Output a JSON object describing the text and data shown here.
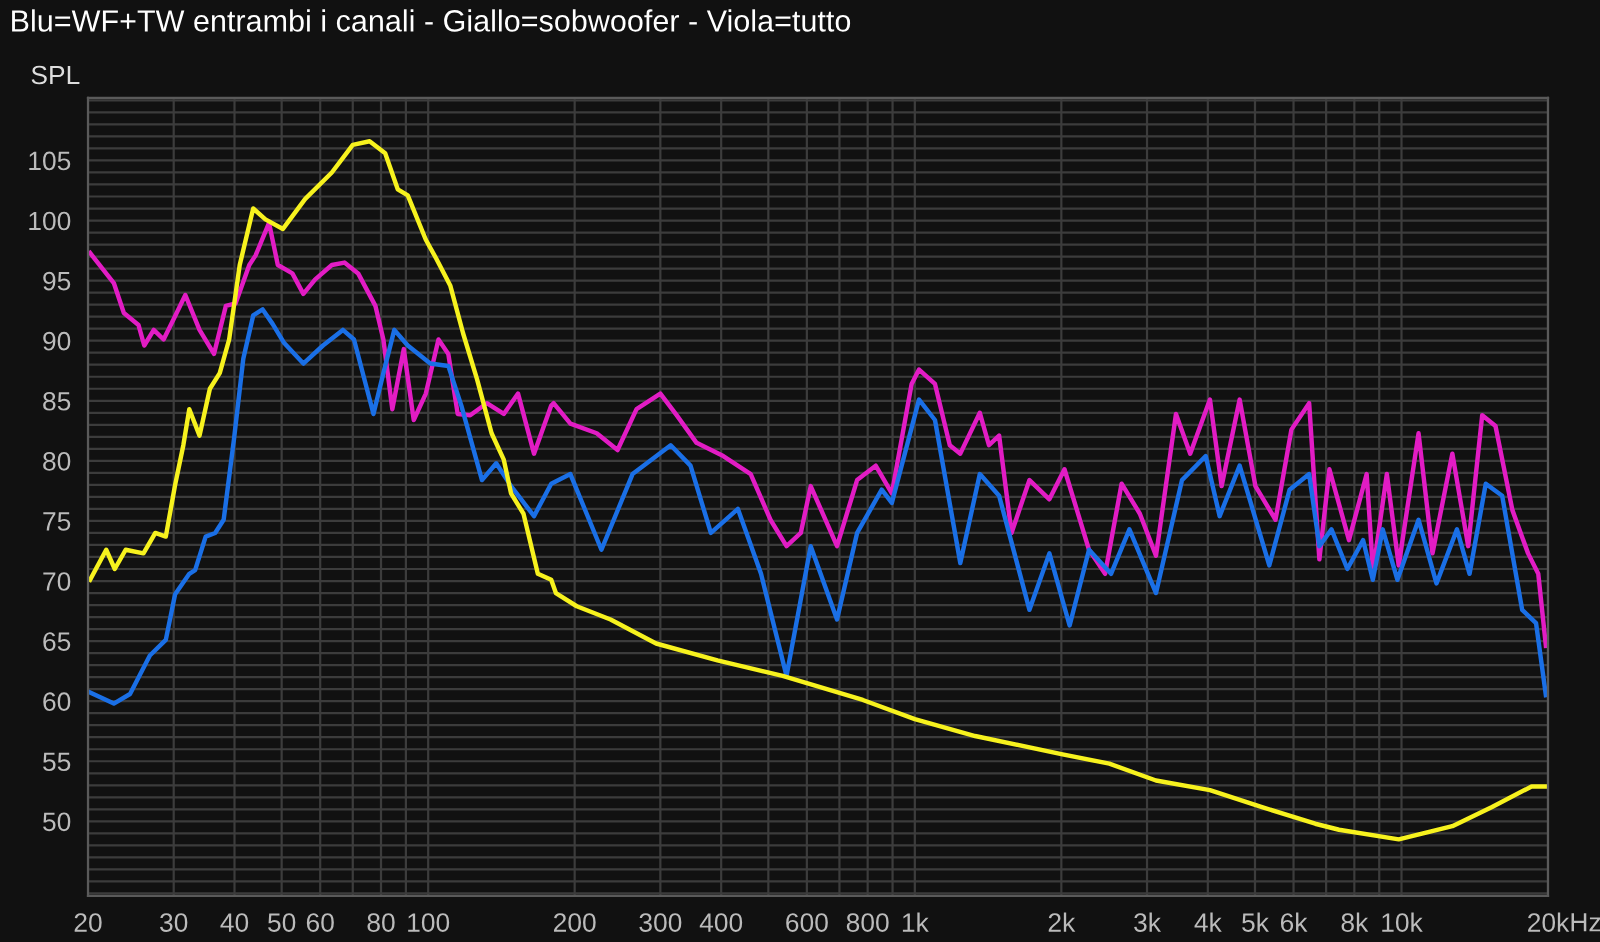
{
  "chart_data": {
    "type": "line",
    "title": "Blu=WF+TW entrambi i canali - Giallo=sobwoofer - Viola=tutto",
    "ylabel": "SPL",
    "xlabel": "Hz",
    "log": "x",
    "grid": true,
    "marker": "none",
    "line_style": "solid",
    "xlim": [
      20,
      20000
    ],
    "ylim": [
      43.8,
      110.2
    ],
    "xticks": [
      20,
      30,
      40,
      50,
      60,
      {
        "value": 70,
        "label": null
      },
      80,
      {
        "value": 90,
        "label": null
      },
      100,
      200,
      300,
      400,
      {
        "value": 500,
        "label": null
      },
      600,
      {
        "value": 700,
        "label": null
      },
      800,
      {
        "value": 900,
        "label": null
      },
      {
        "value": 1000,
        "label": "1k"
      },
      {
        "value": 2000,
        "label": "2k"
      },
      {
        "value": 3000,
        "label": "3k"
      },
      {
        "value": 4000,
        "label": "4k"
      },
      {
        "value": 5000,
        "label": "5k"
      },
      {
        "value": 6000,
        "label": "6k"
      },
      {
        "value": 7000,
        "label": null
      },
      {
        "value": 8000,
        "label": "8k"
      },
      {
        "value": 9000,
        "label": null
      },
      {
        "value": 10000,
        "label": "10k"
      },
      {
        "value": 20000,
        "label": "20k"
      }
    ],
    "yticks": [
      {
        "value": 44,
        "label": null
      },
      {
        "value": 45,
        "label": null
      },
      {
        "value": 46,
        "label": null
      },
      {
        "value": 47,
        "label": null
      },
      {
        "value": 48,
        "label": null
      },
      {
        "value": 49,
        "label": null
      },
      50,
      {
        "value": 51,
        "label": null
      },
      {
        "value": 52,
        "label": null
      },
      {
        "value": 53,
        "label": null
      },
      {
        "value": 54,
        "label": null
      },
      55,
      {
        "value": 56,
        "label": null
      },
      {
        "value": 57,
        "label": null
      },
      {
        "value": 58,
        "label": null
      },
      {
        "value": 59,
        "label": null
      },
      60,
      {
        "value": 61,
        "label": null
      },
      {
        "value": 62,
        "label": null
      },
      {
        "value": 63,
        "label": null
      },
      {
        "value": 64,
        "label": null
      },
      65,
      {
        "value": 66,
        "label": null
      },
      {
        "value": 67,
        "label": null
      },
      {
        "value": 68,
        "label": null
      },
      {
        "value": 69,
        "label": null
      },
      70,
      {
        "value": 71,
        "label": null
      },
      {
        "value": 72,
        "label": null
      },
      {
        "value": 73,
        "label": null
      },
      {
        "value": 74,
        "label": null
      },
      75,
      {
        "value": 76,
        "label": null
      },
      {
        "value": 77,
        "label": null
      },
      {
        "value": 78,
        "label": null
      },
      {
        "value": 79,
        "label": null
      },
      80,
      {
        "value": 81,
        "label": null
      },
      {
        "value": 82,
        "label": null
      },
      {
        "value": 83,
        "label": null
      },
      {
        "value": 84,
        "label": null
      },
      85,
      {
        "value": 86,
        "label": null
      },
      {
        "value": 87,
        "label": null
      },
      {
        "value": 88,
        "label": null
      },
      {
        "value": 89,
        "label": null
      },
      90,
      {
        "value": 91,
        "label": null
      },
      {
        "value": 92,
        "label": null
      },
      {
        "value": 93,
        "label": null
      },
      {
        "value": 94,
        "label": null
      },
      95,
      {
        "value": 96,
        "label": null
      },
      {
        "value": 97,
        "label": null
      },
      {
        "value": 98,
        "label": null
      },
      {
        "value": 99,
        "label": null
      },
      100,
      {
        "value": 101,
        "label": null
      },
      {
        "value": 102,
        "label": null
      },
      {
        "value": 103,
        "label": null
      },
      {
        "value": 104,
        "label": null
      },
      105,
      {
        "value": 106,
        "label": null
      },
      {
        "value": 107,
        "label": null
      },
      {
        "value": 108,
        "label": null
      },
      {
        "value": 109,
        "label": null
      },
      {
        "value": 110,
        "label": null
      }
    ],
    "series": [
      {
        "color": "#e21cc4",
        "x": [
          20.2,
          22.6,
          23.7,
          25.4,
          26.1,
          27.3,
          28.6,
          30.0,
          31.7,
          33.9,
          36.3,
          38.4,
          40.2,
          42.9,
          44.2,
          47.1,
          49.1,
          52.6,
          55.4,
          58.6,
          63.4,
          67.3,
          71.8,
          77.9,
          80.9,
          84.4,
          89.1,
          93.4,
          98.9,
          105,
          110,
          115,
          122,
          132,
          143,
          153,
          165,
          179,
          181,
          196,
          222,
          245,
          268,
          300,
          324,
          356,
          404,
          460,
          505,
          545,
          583,
          611,
          692,
          761,
          831,
          897,
          985,
          1020,
          1100,
          1180,
          1240,
          1360,
          1420,
          1490,
          1580,
          1720,
          1890,
          2030,
          2280,
          2460,
          2660,
          2900,
          3130,
          3440,
          3680,
          4040,
          4270,
          4650,
          5010,
          5510,
          5940,
          6460,
          6780,
          7110,
          7800,
          8480,
          8740,
          9330,
          9870,
          10840,
          11580,
          12720,
          13710,
          14650,
          15600,
          16900,
          18200,
          19100,
          19800
        ],
        "values": [
          97.3,
          94.8,
          92.3,
          91.3,
          89.6,
          90.9,
          90.1,
          91.8,
          93.8,
          90.9,
          88.9,
          92.9,
          93.1,
          96.3,
          97.1,
          99.8,
          96.3,
          95.6,
          93.9,
          95.1,
          96.3,
          96.5,
          95.6,
          92.9,
          90.1,
          84.3,
          89.3,
          83.4,
          85.6,
          90.1,
          88.9,
          83.9,
          83.8,
          84.8,
          83.9,
          85.6,
          80.6,
          84.6,
          84.8,
          83.1,
          82.3,
          80.9,
          84.3,
          85.6,
          83.8,
          81.5,
          80.4,
          78.9,
          75.1,
          72.9,
          74.0,
          77.9,
          72.9,
          78.4,
          79.6,
          77.3,
          86.4,
          87.6,
          86.4,
          81.3,
          80.6,
          84.0,
          81.3,
          82.1,
          74.0,
          78.4,
          76.8,
          79.3,
          72.6,
          70.6,
          78.1,
          75.6,
          72.1,
          83.9,
          80.6,
          85.1,
          77.9,
          85.1,
          77.9,
          75.1,
          82.6,
          84.8,
          71.8,
          79.3,
          73.4,
          78.9,
          70.8,
          78.9,
          71.3,
          82.3,
          72.3,
          80.6,
          72.9,
          83.8,
          82.9,
          75.9,
          72.3,
          70.6,
          64.6
        ]
      },
      {
        "color": "#1a6fe6",
        "x": [
          20,
          22.6,
          24.4,
          26.8,
          28.9,
          30.2,
          32.3,
          33.2,
          34.9,
          36.5,
          38.0,
          39.9,
          41.7,
          43.7,
          45.7,
          47.9,
          50.6,
          55.4,
          60.8,
          66.8,
          70.4,
          77.2,
          80.9,
          85.2,
          90.8,
          101,
          110,
          117,
          129,
          138,
          148,
          165,
          179,
          196,
          227,
          263,
          315,
          346,
          381,
          433,
          483,
          545,
          611,
          692,
          761,
          855,
          897,
          1020,
          1100,
          1240,
          1360,
          1490,
          1720,
          1890,
          2080,
          2280,
          2530,
          2760,
          3130,
          3540,
          3960,
          4230,
          4650,
          5350,
          5890,
          6460,
          6780,
          7180,
          7740,
          8340,
          8730,
          9150,
          9810,
          10840,
          11800,
          13000,
          13800,
          14900,
          16100,
          17700,
          18900,
          19800
        ],
        "values": [
          60.8,
          59.8,
          60.6,
          63.8,
          65.1,
          68.9,
          70.6,
          70.9,
          73.7,
          74.0,
          75.1,
          81.8,
          88.5,
          92.1,
          92.6,
          91.4,
          89.8,
          88.1,
          89.6,
          90.9,
          90.1,
          83.9,
          87.3,
          90.9,
          89.6,
          88.1,
          87.9,
          84.6,
          78.4,
          79.8,
          77.9,
          75.4,
          78.1,
          78.9,
          72.6,
          78.9,
          81.3,
          79.6,
          74.0,
          76.0,
          70.6,
          62.1,
          72.9,
          66.8,
          74.0,
          77.6,
          76.5,
          85.1,
          83.4,
          71.5,
          78.9,
          77.1,
          67.6,
          72.3,
          66.3,
          72.6,
          70.6,
          74.3,
          69.0,
          78.4,
          80.4,
          75.4,
          79.6,
          71.3,
          77.6,
          78.9,
          72.9,
          74.3,
          71.0,
          73.4,
          70.1,
          74.3,
          70.1,
          75.1,
          69.8,
          74.3,
          70.6,
          78.1,
          77.1,
          67.6,
          66.5,
          60.5
        ]
      },
      {
        "color": "#f7f21e",
        "x": [
          20.2,
          21.8,
          22.7,
          23.9,
          26.0,
          27.5,
          28.9,
          30.2,
          31.4,
          32.3,
          33.9,
          35.6,
          37.3,
          39.0,
          41.0,
          43.7,
          46.3,
          50.3,
          55.9,
          63.4,
          70.0,
          75.8,
          81.6,
          86.6,
          90.8,
          98.9,
          104,
          111,
          118,
          126,
          135,
          143,
          148,
          157,
          168,
          179,
          183,
          202,
          237,
          294,
          393,
          535,
          782,
          1000,
          1330,
          2000,
          2510,
          3130,
          4040,
          5150,
          6650,
          7440,
          9870,
          12720,
          15350,
          18500,
          19800
        ],
        "values": [
          70.1,
          72.6,
          71.0,
          72.6,
          72.3,
          74.0,
          73.7,
          78.0,
          81.3,
          84.3,
          82.1,
          86.0,
          87.3,
          90.1,
          96.3,
          101.0,
          100.1,
          99.3,
          101.8,
          104.0,
          106.3,
          106.6,
          105.6,
          102.6,
          102.1,
          98.4,
          96.8,
          94.6,
          90.6,
          86.8,
          82.3,
          80.1,
          77.3,
          75.6,
          70.6,
          70.1,
          69.0,
          67.9,
          66.8,
          64.8,
          63.4,
          62.1,
          60.1,
          58.5,
          57.1,
          55.6,
          54.8,
          53.4,
          52.6,
          51.2,
          49.8,
          49.3,
          48.5,
          49.6,
          51.2,
          52.9,
          52.9
        ]
      }
    ]
  }
}
